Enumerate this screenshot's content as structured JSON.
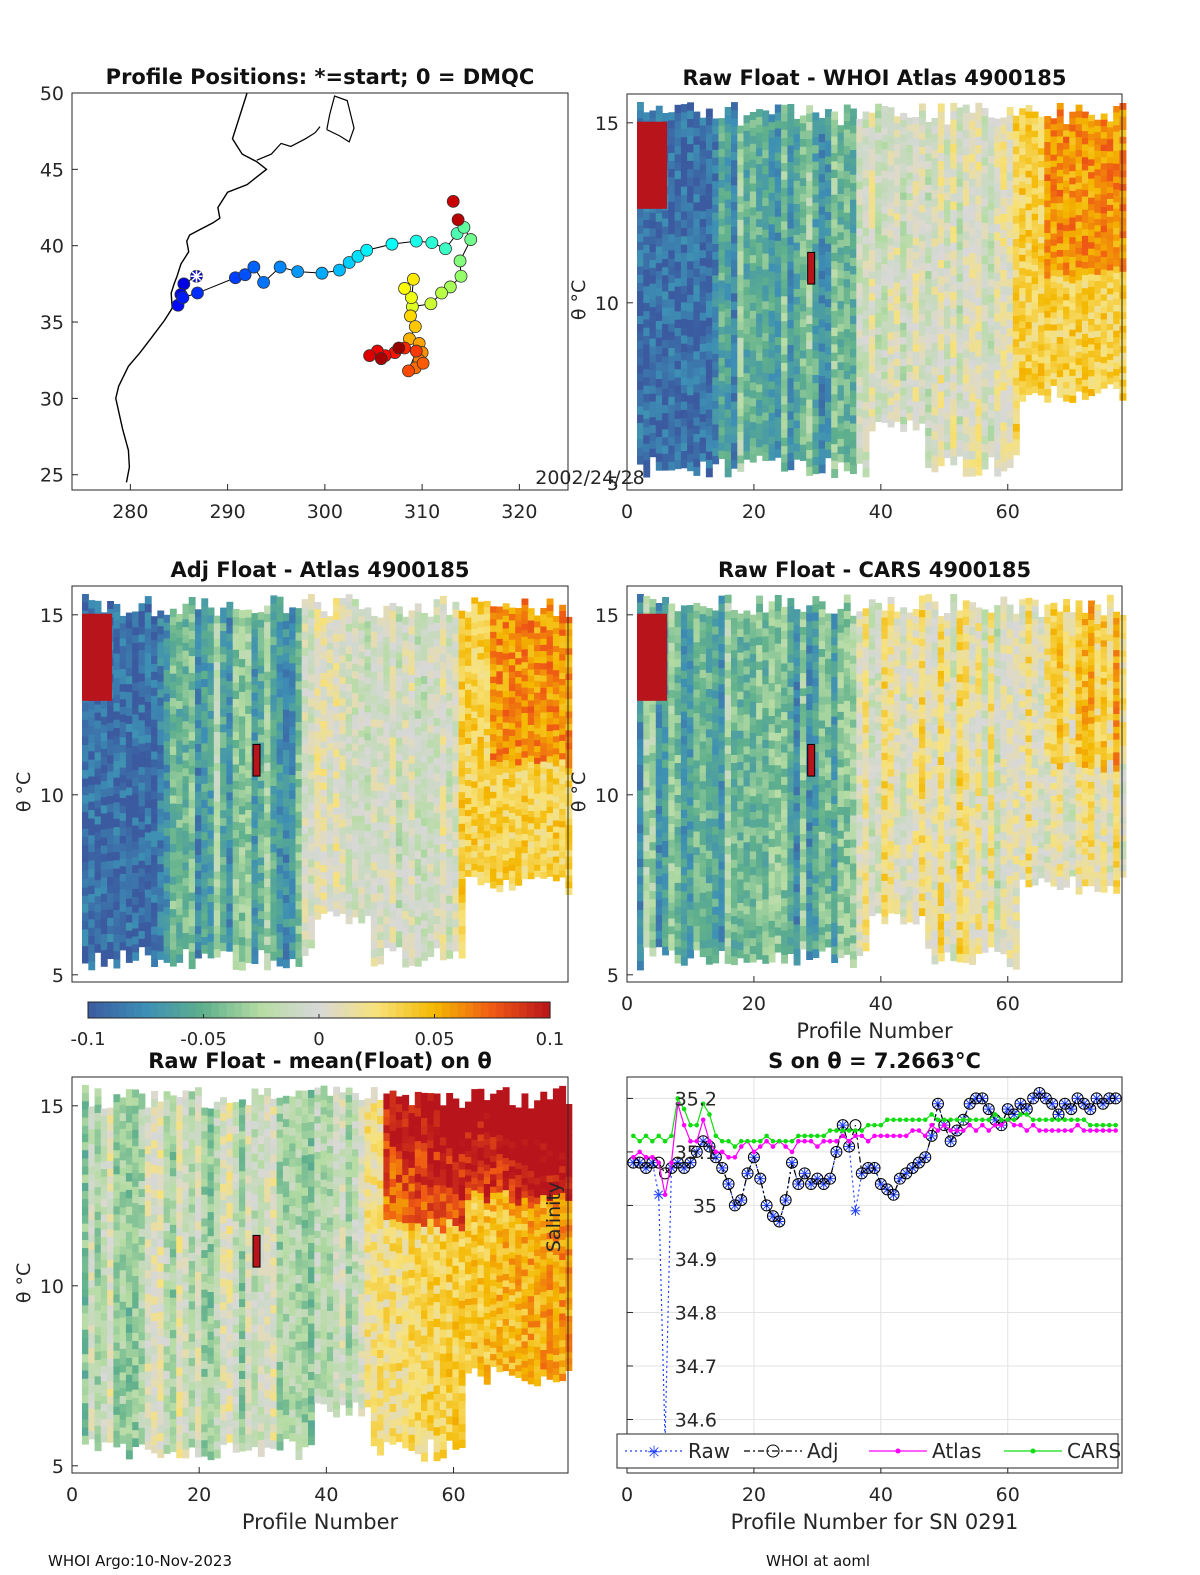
{
  "footer": {
    "left": "WHOI Argo:10-Nov-2023",
    "right": "WHOI at aoml"
  },
  "colorbar": {
    "ticks": [
      "-0.1",
      "-0.05",
      "0",
      "0.05",
      "0.1"
    ],
    "values": [
      -0.1,
      -0.05,
      0,
      0.05,
      0.1
    ],
    "colors": [
      "#3b5aa0",
      "#3d8fb5",
      "#5fb08c",
      "#b6dca4",
      "#d8d8d8",
      "#f7e27a",
      "#f4b800",
      "#ef5a14",
      "#b8141c"
    ]
  },
  "chart_data": [
    {
      "id": "map",
      "type": "scatter",
      "title": "Profile Positions: *=start; 0 = DMQC",
      "xlabel": "",
      "ylabel": "",
      "xlim": [
        274,
        325
      ],
      "ylim": [
        24,
        50
      ],
      "xticks": [
        "280",
        "290",
        "300",
        "310",
        "320"
      ],
      "yticks": [
        "25",
        "30",
        "35",
        "40",
        "45",
        "50"
      ],
      "annotation": "2002/24/28",
      "start_marker": [
        286.8,
        38.0
      ],
      "track": [
        [
          286.8,
          38.0
        ],
        [
          285.5,
          37.5
        ],
        [
          285.2,
          36.8
        ],
        [
          284.9,
          36.1
        ],
        [
          285.4,
          36.6
        ],
        [
          286.9,
          36.9
        ],
        [
          290.8,
          37.9
        ],
        [
          291.8,
          38.1
        ],
        [
          292.7,
          38.6
        ],
        [
          293.7,
          37.6
        ],
        [
          295.4,
          38.6
        ],
        [
          297.2,
          38.3
        ],
        [
          299.7,
          38.2
        ],
        [
          301.5,
          38.4
        ],
        [
          302.5,
          38.9
        ],
        [
          303.4,
          39.3
        ],
        [
          304.3,
          39.7
        ],
        [
          306.9,
          40.1
        ],
        [
          309.4,
          40.3
        ],
        [
          311.0,
          40.2
        ],
        [
          312.4,
          39.8
        ],
        [
          313.6,
          40.8
        ],
        [
          314.3,
          41.2
        ],
        [
          315.0,
          40.4
        ],
        [
          313.9,
          39.0
        ],
        [
          314.0,
          38.0
        ],
        [
          312.9,
          37.3
        ],
        [
          312.0,
          36.9
        ],
        [
          310.9,
          36.2
        ],
        [
          309.0,
          36.0
        ],
        [
          308.9,
          36.6
        ],
        [
          308.2,
          37.2
        ],
        [
          309.1,
          37.8
        ],
        [
          308.8,
          35.4
        ],
        [
          309.3,
          34.7
        ],
        [
          308.7,
          33.9
        ],
        [
          309.7,
          33.6
        ],
        [
          310.0,
          33.0
        ],
        [
          309.7,
          32.5
        ],
        [
          309.3,
          32.0
        ],
        [
          310.1,
          32.3
        ],
        [
          308.6,
          31.8
        ],
        [
          309.4,
          33.1
        ],
        [
          308.2,
          33.3
        ],
        [
          307.2,
          33.0
        ],
        [
          306.2,
          32.8
        ],
        [
          305.4,
          33.1
        ],
        [
          304.6,
          32.8
        ],
        [
          313.2,
          42.9
        ],
        [
          313.7,
          41.7
        ],
        [
          305.8,
          32.6
        ],
        [
          307.6,
          33.3
        ]
      ]
    },
    {
      "id": "raw_whoi",
      "type": "heatmap",
      "title": "Raw Float - WHOI Atlas  4900185",
      "xlabel": "",
      "ylabel": "θ °C",
      "xlim": [
        0,
        78
      ],
      "ylim": [
        4.8,
        15.8
      ],
      "xticks": [
        "0",
        "20",
        "40",
        "60"
      ],
      "yticks": [
        "5",
        "10",
        "15"
      ]
    },
    {
      "id": "adj_atlas",
      "type": "heatmap",
      "title": "Adj Float - Atlas  4900185",
      "xlabel": "",
      "ylabel": "θ °C",
      "xlim": [
        0,
        78
      ],
      "ylim": [
        4.8,
        15.8
      ],
      "xticks": [],
      "yticks": [
        "5",
        "10",
        "15"
      ]
    },
    {
      "id": "raw_cars",
      "type": "heatmap",
      "title": "Raw Float - CARS  4900185",
      "xlabel": "Profile Number",
      "ylabel": "θ °C",
      "xlim": [
        0,
        78
      ],
      "ylim": [
        4.8,
        15.8
      ],
      "xticks": [
        "0",
        "20",
        "40",
        "60"
      ],
      "yticks": [
        "5",
        "10",
        "15"
      ]
    },
    {
      "id": "raw_mean",
      "type": "heatmap",
      "title": "Raw Float - mean(Float) on θ",
      "xlabel": "Profile Number",
      "ylabel": "θ °C",
      "xlim": [
        0,
        78
      ],
      "ylim": [
        4.8,
        15.8
      ],
      "xticks": [
        "0",
        "20",
        "40",
        "60"
      ],
      "yticks": [
        "5",
        "10",
        "15"
      ]
    },
    {
      "id": "salinity",
      "type": "line",
      "title": "S on θ = 7.2663°C",
      "xlabel": "Profile Number for SN 0291",
      "ylabel": "Salinity",
      "xlim": [
        0,
        78
      ],
      "ylim": [
        34.5,
        35.24
      ],
      "xticks": [
        "0",
        "20",
        "40",
        "60"
      ],
      "yticks": [
        "34.6",
        "34.7",
        "34.8",
        "34.9",
        "35",
        "35.1",
        "35.2"
      ],
      "legend": [
        "Raw",
        "Adj",
        "Atlas",
        "CARS"
      ],
      "x": [
        1,
        2,
        3,
        4,
        5,
        6,
        7,
        8,
        9,
        10,
        11,
        12,
        13,
        14,
        15,
        16,
        17,
        18,
        19,
        20,
        21,
        22,
        23,
        24,
        25,
        26,
        27,
        28,
        29,
        30,
        31,
        32,
        33,
        34,
        35,
        36,
        37,
        38,
        39,
        40,
        41,
        42,
        43,
        44,
        45,
        46,
        47,
        48,
        49,
        50,
        51,
        52,
        53,
        54,
        55,
        56,
        57,
        58,
        59,
        60,
        61,
        62,
        63,
        64,
        65,
        66,
        67,
        68,
        69,
        70,
        71,
        72,
        73,
        74,
        75,
        76,
        77
      ],
      "series": [
        {
          "name": "Raw",
          "values": [
            35.08,
            35.08,
            35.07,
            35.08,
            35.02,
            34.56,
            35.07,
            35.08,
            35.07,
            35.08,
            35.1,
            35.12,
            35.11,
            35.09,
            35.07,
            35.04,
            35.0,
            35.01,
            35.06,
            35.09,
            35.05,
            35.0,
            34.98,
            34.97,
            35.01,
            35.08,
            35.04,
            35.06,
            35.04,
            35.05,
            35.04,
            35.05,
            35.1,
            35.15,
            35.11,
            34.99,
            35.06,
            35.07,
            35.07,
            35.04,
            35.03,
            35.02,
            35.05,
            35.06,
            35.07,
            35.08,
            35.09,
            35.13,
            35.19,
            35.15,
            35.12,
            35.14,
            35.16,
            35.19,
            35.2,
            35.2,
            35.18,
            35.16,
            35.15,
            35.18,
            35.17,
            35.19,
            35.18,
            35.2,
            35.21,
            35.2,
            35.19,
            35.17,
            35.19,
            35.18,
            35.2,
            35.19,
            35.18,
            35.2,
            35.19,
            35.2,
            35.2
          ]
        },
        {
          "name": "Adj",
          "values": [
            35.08,
            35.08,
            35.07,
            35.08,
            35.08,
            35.06,
            35.07,
            35.08,
            35.07,
            35.08,
            35.1,
            35.12,
            35.11,
            35.09,
            35.07,
            35.04,
            35.0,
            35.01,
            35.06,
            35.09,
            35.05,
            35.0,
            34.98,
            34.97,
            35.01,
            35.08,
            35.04,
            35.06,
            35.04,
            35.05,
            35.04,
            35.05,
            35.1,
            35.15,
            35.11,
            35.15,
            35.06,
            35.07,
            35.07,
            35.04,
            35.03,
            35.02,
            35.05,
            35.06,
            35.07,
            35.08,
            35.09,
            35.13,
            35.19,
            35.15,
            35.12,
            35.14,
            35.16,
            35.19,
            35.2,
            35.2,
            35.18,
            35.16,
            35.15,
            35.18,
            35.17,
            35.19,
            35.18,
            35.2,
            35.21,
            35.2,
            35.19,
            35.17,
            35.19,
            35.18,
            35.2,
            35.19,
            35.18,
            35.2,
            35.19,
            35.2,
            35.2
          ]
        },
        {
          "name": "Atlas",
          "values": [
            35.09,
            35.1,
            35.09,
            35.09,
            35.08,
            35.02,
            35.08,
            35.19,
            35.15,
            35.12,
            35.12,
            35.16,
            35.12,
            35.1,
            35.1,
            35.09,
            35.09,
            35.11,
            35.12,
            35.1,
            35.11,
            35.12,
            35.11,
            35.12,
            35.11,
            35.1,
            35.12,
            35.12,
            35.12,
            35.11,
            35.12,
            35.12,
            35.12,
            35.13,
            35.12,
            35.13,
            35.13,
            35.12,
            35.13,
            35.13,
            35.13,
            35.13,
            35.13,
            35.13,
            35.14,
            35.14,
            35.13,
            35.15,
            35.14,
            35.15,
            35.14,
            35.14,
            35.14,
            35.15,
            35.14,
            35.15,
            35.14,
            35.15,
            35.15,
            35.16,
            35.15,
            35.15,
            35.14,
            35.15,
            35.14,
            35.14,
            35.14,
            35.14,
            35.14,
            35.14,
            35.15,
            35.14,
            35.14,
            35.14,
            35.14,
            35.14,
            35.14
          ]
        },
        {
          "name": "CARS",
          "values": [
            35.13,
            35.12,
            35.13,
            35.12,
            35.13,
            35.12,
            35.13,
            35.2,
            35.18,
            35.15,
            35.15,
            35.19,
            35.17,
            35.13,
            35.12,
            35.12,
            35.11,
            35.12,
            35.12,
            35.12,
            35.12,
            35.13,
            35.12,
            35.12,
            35.12,
            35.12,
            35.13,
            35.13,
            35.13,
            35.13,
            35.13,
            35.14,
            35.14,
            35.14,
            35.14,
            35.14,
            35.14,
            35.15,
            35.15,
            35.15,
            35.16,
            35.16,
            35.16,
            35.16,
            35.16,
            35.16,
            35.16,
            35.17,
            35.16,
            35.16,
            35.16,
            35.16,
            35.16,
            35.16,
            35.16,
            35.16,
            35.16,
            35.17,
            35.16,
            35.16,
            35.16,
            35.17,
            35.17,
            35.16,
            35.16,
            35.16,
            35.16,
            35.16,
            35.16,
            35.16,
            35.16,
            35.16,
            35.15,
            35.15,
            35.15,
            35.15,
            35.15
          ]
        }
      ]
    }
  ]
}
